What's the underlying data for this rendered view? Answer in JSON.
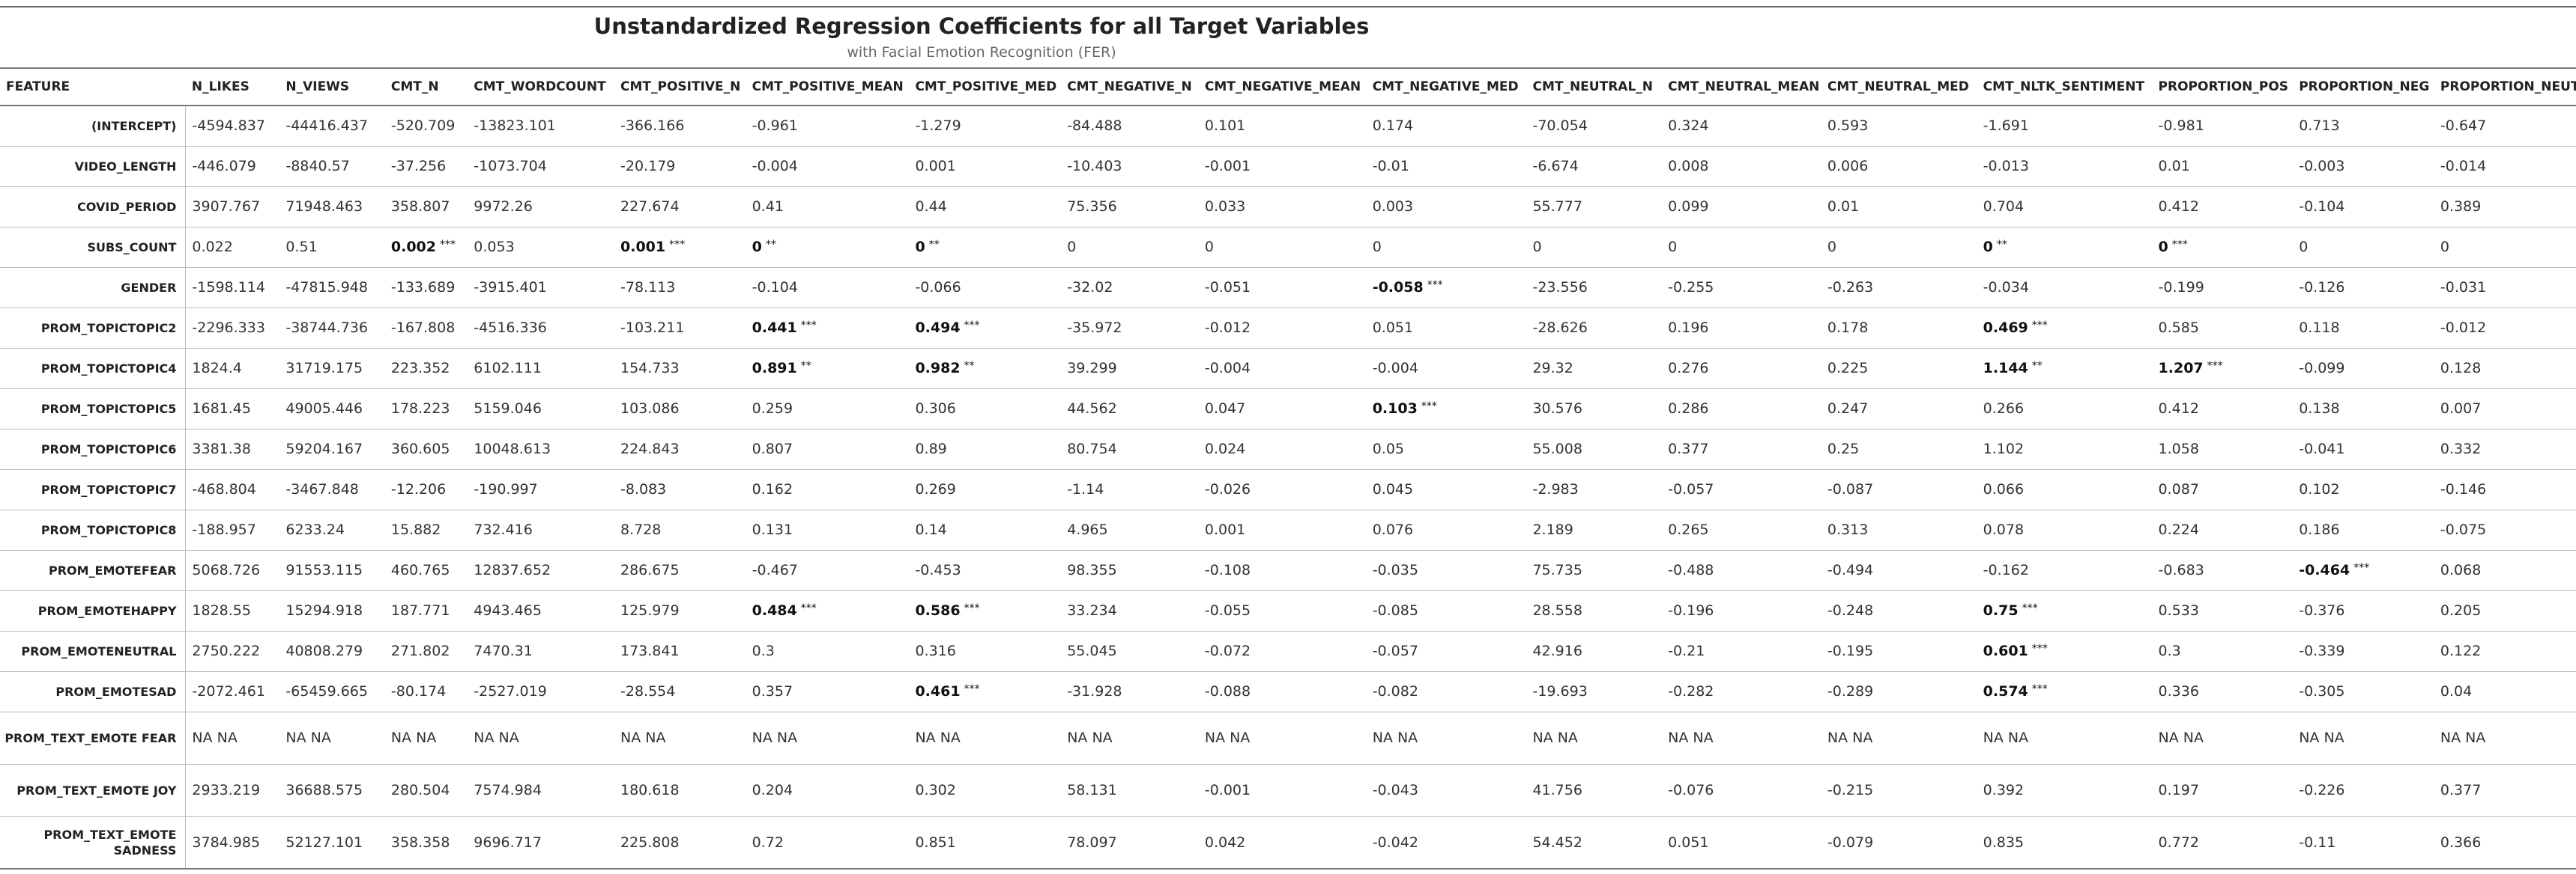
{
  "title": "Unstandardized Regression Coefficients for all Target Variables",
  "subtitle": "with Facial Emotion Recognition (FER)",
  "columns": [
    "FEATURE",
    "N_LIKES",
    "N_VIEWS",
    "CMT_N",
    "CMT_WORDCOUNT",
    "CMT_POSITIVE_N",
    "CMT_POSITIVE_MEAN",
    "CMT_POSITIVE_MED",
    "CMT_NEGATIVE_N",
    "CMT_NEGATIVE_MEAN",
    "CMT_NEGATIVE_MED",
    "CMT_NEUTRAL_N",
    "CMT_NEUTRAL_MEAN",
    "CMT_NEUTRAL_MED",
    "CMT_NLTK_SENTIMENT",
    "PROPORTION_POS",
    "PROPORTION_NEG",
    "PROPORTION_NEUT"
  ],
  "rows": [
    {
      "feature": "(INTERCEPT)",
      "cells": [
        {
          "v": "-4594.837"
        },
        {
          "v": "-44416.437"
        },
        {
          "v": "-520.709"
        },
        {
          "v": "-13823.101"
        },
        {
          "v": "-366.166"
        },
        {
          "v": "-0.961"
        },
        {
          "v": "-1.279"
        },
        {
          "v": "-84.488"
        },
        {
          "v": "0.101"
        },
        {
          "v": "0.174"
        },
        {
          "v": "-70.054"
        },
        {
          "v": "0.324"
        },
        {
          "v": "0.593"
        },
        {
          "v": "-1.691"
        },
        {
          "v": "-0.981"
        },
        {
          "v": "0.713"
        },
        {
          "v": "-0.647"
        }
      ]
    },
    {
      "feature": "VIDEO_LENGTH",
      "cells": [
        {
          "v": "-446.079"
        },
        {
          "v": "-8840.57"
        },
        {
          "v": "-37.256"
        },
        {
          "v": "-1073.704"
        },
        {
          "v": "-20.179"
        },
        {
          "v": "-0.004"
        },
        {
          "v": "0.001"
        },
        {
          "v": "-10.403"
        },
        {
          "v": "-0.001"
        },
        {
          "v": "-0.01"
        },
        {
          "v": "-6.674"
        },
        {
          "v": "0.008"
        },
        {
          "v": "0.006"
        },
        {
          "v": "-0.013"
        },
        {
          "v": "0.01"
        },
        {
          "v": "-0.003"
        },
        {
          "v": "-0.014"
        }
      ]
    },
    {
      "feature": "COVID_PERIOD",
      "cells": [
        {
          "v": "3907.767"
        },
        {
          "v": "71948.463"
        },
        {
          "v": "358.807"
        },
        {
          "v": "9972.26"
        },
        {
          "v": "227.674"
        },
        {
          "v": "0.41"
        },
        {
          "v": "0.44"
        },
        {
          "v": "75.356"
        },
        {
          "v": "0.033"
        },
        {
          "v": "0.003"
        },
        {
          "v": "55.777"
        },
        {
          "v": "0.099"
        },
        {
          "v": "0.01"
        },
        {
          "v": "0.704"
        },
        {
          "v": "0.412"
        },
        {
          "v": "-0.104"
        },
        {
          "v": "0.389"
        }
      ]
    },
    {
      "feature": "SUBS_COUNT",
      "cells": [
        {
          "v": "0.022"
        },
        {
          "v": "0.51"
        },
        {
          "v": "0.002",
          "s": "***"
        },
        {
          "v": "0.053"
        },
        {
          "v": "0.001",
          "s": "***"
        },
        {
          "v": "0",
          "s": "**"
        },
        {
          "v": "0",
          "s": "**"
        },
        {
          "v": "0"
        },
        {
          "v": "0"
        },
        {
          "v": "0"
        },
        {
          "v": "0"
        },
        {
          "v": "0"
        },
        {
          "v": "0"
        },
        {
          "v": "0",
          "s": "**"
        },
        {
          "v": "0",
          "s": "***"
        },
        {
          "v": "0"
        },
        {
          "v": "0"
        }
      ]
    },
    {
      "feature": "GENDER",
      "cells": [
        {
          "v": "-1598.114"
        },
        {
          "v": "-47815.948"
        },
        {
          "v": "-133.689"
        },
        {
          "v": "-3915.401"
        },
        {
          "v": "-78.113"
        },
        {
          "v": "-0.104"
        },
        {
          "v": "-0.066"
        },
        {
          "v": "-32.02"
        },
        {
          "v": "-0.051"
        },
        {
          "v": "-0.058",
          "s": "***"
        },
        {
          "v": "-23.556"
        },
        {
          "v": "-0.255"
        },
        {
          "v": "-0.263"
        },
        {
          "v": "-0.034"
        },
        {
          "v": "-0.199"
        },
        {
          "v": "-0.126"
        },
        {
          "v": "-0.031"
        }
      ]
    },
    {
      "feature": "PROM_TOPICTOPIC2",
      "cells": [
        {
          "v": "-2296.333"
        },
        {
          "v": "-38744.736"
        },
        {
          "v": "-167.808"
        },
        {
          "v": "-4516.336"
        },
        {
          "v": "-103.211"
        },
        {
          "v": "0.441",
          "s": "***"
        },
        {
          "v": "0.494",
          "s": "***"
        },
        {
          "v": "-35.972"
        },
        {
          "v": "-0.012"
        },
        {
          "v": "0.051"
        },
        {
          "v": "-28.626"
        },
        {
          "v": "0.196"
        },
        {
          "v": "0.178"
        },
        {
          "v": "0.469",
          "s": "***"
        },
        {
          "v": "0.585"
        },
        {
          "v": "0.118"
        },
        {
          "v": "-0.012"
        }
      ]
    },
    {
      "feature": "PROM_TOPICTOPIC4",
      "cells": [
        {
          "v": "1824.4"
        },
        {
          "v": "31719.175"
        },
        {
          "v": "223.352"
        },
        {
          "v": "6102.111"
        },
        {
          "v": "154.733"
        },
        {
          "v": "0.891",
          "s": "**"
        },
        {
          "v": "0.982",
          "s": "**"
        },
        {
          "v": "39.299"
        },
        {
          "v": "-0.004"
        },
        {
          "v": "-0.004"
        },
        {
          "v": "29.32"
        },
        {
          "v": "0.276"
        },
        {
          "v": "0.225"
        },
        {
          "v": "1.144",
          "s": "**"
        },
        {
          "v": "1.207",
          "s": "***"
        },
        {
          "v": "-0.099"
        },
        {
          "v": "0.128"
        }
      ]
    },
    {
      "feature": "PROM_TOPICTOPIC5",
      "cells": [
        {
          "v": "1681.45"
        },
        {
          "v": "49005.446"
        },
        {
          "v": "178.223"
        },
        {
          "v": "5159.046"
        },
        {
          "v": "103.086"
        },
        {
          "v": "0.259"
        },
        {
          "v": "0.306"
        },
        {
          "v": "44.562"
        },
        {
          "v": "0.047"
        },
        {
          "v": "0.103",
          "s": "***"
        },
        {
          "v": "30.576"
        },
        {
          "v": "0.286"
        },
        {
          "v": "0.247"
        },
        {
          "v": "0.266"
        },
        {
          "v": "0.412"
        },
        {
          "v": "0.138"
        },
        {
          "v": "0.007"
        }
      ]
    },
    {
      "feature": "PROM_TOPICTOPIC6",
      "cells": [
        {
          "v": "3381.38"
        },
        {
          "v": "59204.167"
        },
        {
          "v": "360.605"
        },
        {
          "v": "10048.613"
        },
        {
          "v": "224.843"
        },
        {
          "v": "0.807"
        },
        {
          "v": "0.89"
        },
        {
          "v": "80.754"
        },
        {
          "v": "0.024"
        },
        {
          "v": "0.05"
        },
        {
          "v": "55.008"
        },
        {
          "v": "0.377"
        },
        {
          "v": "0.25"
        },
        {
          "v": "1.102"
        },
        {
          "v": "1.058"
        },
        {
          "v": "-0.041"
        },
        {
          "v": "0.332"
        }
      ]
    },
    {
      "feature": "PROM_TOPICTOPIC7",
      "cells": [
        {
          "v": "-468.804"
        },
        {
          "v": "-3467.848"
        },
        {
          "v": "-12.206"
        },
        {
          "v": "-190.997"
        },
        {
          "v": "-8.083"
        },
        {
          "v": "0.162"
        },
        {
          "v": "0.269"
        },
        {
          "v": "-1.14"
        },
        {
          "v": "-0.026"
        },
        {
          "v": "0.045"
        },
        {
          "v": "-2.983"
        },
        {
          "v": "-0.057"
        },
        {
          "v": "-0.087"
        },
        {
          "v": "0.066"
        },
        {
          "v": "0.087"
        },
        {
          "v": "0.102"
        },
        {
          "v": "-0.146"
        }
      ]
    },
    {
      "feature": "PROM_TOPICTOPIC8",
      "cells": [
        {
          "v": "-188.957"
        },
        {
          "v": "6233.24"
        },
        {
          "v": "15.882"
        },
        {
          "v": "732.416"
        },
        {
          "v": "8.728"
        },
        {
          "v": "0.131"
        },
        {
          "v": "0.14"
        },
        {
          "v": "4.965"
        },
        {
          "v": "0.001"
        },
        {
          "v": "0.076"
        },
        {
          "v": "2.189"
        },
        {
          "v": "0.265"
        },
        {
          "v": "0.313"
        },
        {
          "v": "0.078"
        },
        {
          "v": "0.224"
        },
        {
          "v": "0.186"
        },
        {
          "v": "-0.075"
        }
      ]
    },
    {
      "feature": "PROM_EMOTEFEAR",
      "cells": [
        {
          "v": "5068.726"
        },
        {
          "v": "91553.115"
        },
        {
          "v": "460.765"
        },
        {
          "v": "12837.652"
        },
        {
          "v": "286.675"
        },
        {
          "v": "-0.467"
        },
        {
          "v": "-0.453"
        },
        {
          "v": "98.355"
        },
        {
          "v": "-0.108"
        },
        {
          "v": "-0.035"
        },
        {
          "v": "75.735"
        },
        {
          "v": "-0.488"
        },
        {
          "v": "-0.494"
        },
        {
          "v": "-0.162"
        },
        {
          "v": "-0.683"
        },
        {
          "v": "-0.464",
          "s": "***"
        },
        {
          "v": "0.068"
        }
      ]
    },
    {
      "feature": "PROM_EMOTEHAPPY",
      "cells": [
        {
          "v": "1828.55"
        },
        {
          "v": "15294.918"
        },
        {
          "v": "187.771"
        },
        {
          "v": "4943.465"
        },
        {
          "v": "125.979"
        },
        {
          "v": "0.484",
          "s": "***"
        },
        {
          "v": "0.586",
          "s": "***"
        },
        {
          "v": "33.234"
        },
        {
          "v": "-0.055"
        },
        {
          "v": "-0.085"
        },
        {
          "v": "28.558"
        },
        {
          "v": "-0.196"
        },
        {
          "v": "-0.248"
        },
        {
          "v": "0.75",
          "s": "***"
        },
        {
          "v": "0.533"
        },
        {
          "v": "-0.376"
        },
        {
          "v": "0.205"
        }
      ]
    },
    {
      "feature": "PROM_EMOTENEUTRAL",
      "cells": [
        {
          "v": "2750.222"
        },
        {
          "v": "40808.279"
        },
        {
          "v": "271.802"
        },
        {
          "v": "7470.31"
        },
        {
          "v": "173.841"
        },
        {
          "v": "0.3"
        },
        {
          "v": "0.316"
        },
        {
          "v": "55.045"
        },
        {
          "v": "-0.072"
        },
        {
          "v": "-0.057"
        },
        {
          "v": "42.916"
        },
        {
          "v": "-0.21"
        },
        {
          "v": "-0.195"
        },
        {
          "v": "0.601",
          "s": "***"
        },
        {
          "v": "0.3"
        },
        {
          "v": "-0.339"
        },
        {
          "v": "0.122"
        }
      ]
    },
    {
      "feature": "PROM_EMOTESAD",
      "cells": [
        {
          "v": "-2072.461"
        },
        {
          "v": "-65459.665"
        },
        {
          "v": "-80.174"
        },
        {
          "v": "-2527.019"
        },
        {
          "v": "-28.554"
        },
        {
          "v": "0.357"
        },
        {
          "v": "0.461",
          "s": "***"
        },
        {
          "v": "-31.928"
        },
        {
          "v": "-0.088"
        },
        {
          "v": "-0.082"
        },
        {
          "v": "-19.693"
        },
        {
          "v": "-0.282"
        },
        {
          "v": "-0.289"
        },
        {
          "v": "0.574",
          "s": "***"
        },
        {
          "v": "0.336"
        },
        {
          "v": "-0.305"
        },
        {
          "v": "0.04"
        }
      ]
    },
    {
      "feature": "PROM_TEXT_EMOTE FEAR",
      "tall": true,
      "cells": [
        {
          "v": "NA NA"
        },
        {
          "v": "NA NA"
        },
        {
          "v": "NA NA"
        },
        {
          "v": "NA NA"
        },
        {
          "v": "NA NA"
        },
        {
          "v": "NA NA"
        },
        {
          "v": "NA NA"
        },
        {
          "v": "NA NA"
        },
        {
          "v": "NA NA"
        },
        {
          "v": "NA NA"
        },
        {
          "v": "NA NA"
        },
        {
          "v": "NA NA"
        },
        {
          "v": "NA NA"
        },
        {
          "v": "NA NA"
        },
        {
          "v": "NA NA"
        },
        {
          "v": "NA NA"
        },
        {
          "v": "NA NA"
        }
      ]
    },
    {
      "feature": "PROM_TEXT_EMOTE JOY",
      "tall": true,
      "cells": [
        {
          "v": "2933.219"
        },
        {
          "v": "36688.575"
        },
        {
          "v": "280.504"
        },
        {
          "v": "7574.984"
        },
        {
          "v": "180.618"
        },
        {
          "v": "0.204"
        },
        {
          "v": "0.302"
        },
        {
          "v": "58.131"
        },
        {
          "v": "-0.001"
        },
        {
          "v": "-0.043"
        },
        {
          "v": "41.756"
        },
        {
          "v": "-0.076"
        },
        {
          "v": "-0.215"
        },
        {
          "v": "0.392"
        },
        {
          "v": "0.197"
        },
        {
          "v": "-0.226"
        },
        {
          "v": "0.377"
        }
      ]
    },
    {
      "feature": "PROM_TEXT_EMOTE SADNESS",
      "tall": true,
      "cells": [
        {
          "v": "3784.985"
        },
        {
          "v": "52127.101"
        },
        {
          "v": "358.358"
        },
        {
          "v": "9696.717"
        },
        {
          "v": "225.808"
        },
        {
          "v": "0.72"
        },
        {
          "v": "0.851"
        },
        {
          "v": "78.097"
        },
        {
          "v": "0.042"
        },
        {
          "v": "-0.042"
        },
        {
          "v": "54.452"
        },
        {
          "v": "0.051"
        },
        {
          "v": "-0.079"
        },
        {
          "v": "0.835"
        },
        {
          "v": "0.772"
        },
        {
          "v": "-0.11"
        },
        {
          "v": "0.366"
        }
      ]
    }
  ]
}
